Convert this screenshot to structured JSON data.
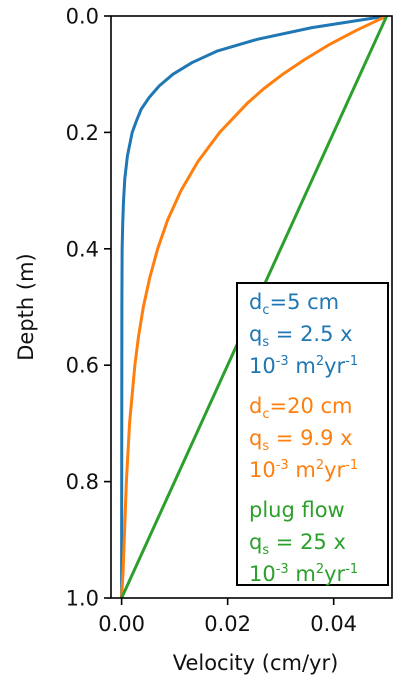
{
  "chart_data": {
    "type": "line",
    "xlabel": "Velocity (cm/yr)",
    "ylabel": "Depth (m)",
    "xlim": [
      -0.002,
      0.051
    ],
    "ylim": [
      1.0,
      0.0
    ],
    "y_inverted": true,
    "x_ticks": [
      "0.00",
      "0.02",
      "0.04"
    ],
    "x_tick_values": [
      0.0,
      0.02,
      0.04
    ],
    "y_ticks": [
      "0.0",
      "0.2",
      "0.4",
      "0.6",
      "0.8",
      "1.0"
    ],
    "y_tick_values": [
      0.0,
      0.2,
      0.4,
      0.6,
      0.8,
      1.0
    ],
    "grid": false,
    "legend_position": "bottom-right",
    "series": [
      {
        "key": "dc5",
        "color": "#1f77b4",
        "x": [
          0.05,
          0.0359,
          0.0256,
          0.0181,
          0.0133,
          0.0097,
          0.0071,
          0.0052,
          0.0037,
          0.0028,
          0.002,
          0.0011,
          0.0006,
          0.00035,
          0.0002,
          0.0001,
          5e-05,
          0.0
        ],
        "y": [
          0.0,
          0.02,
          0.04,
          0.06,
          0.08,
          0.1,
          0.12,
          0.14,
          0.16,
          0.18,
          0.2,
          0.24,
          0.28,
          0.32,
          0.36,
          0.4,
          0.5,
          1.0
        ],
        "legend": {
          "line1": {
            "main": "d",
            "sub": "c",
            "rest": "=5 cm"
          },
          "line2": {
            "main": "q",
            "sub": "s",
            "rest": " = 2.5 x"
          },
          "line3": {
            "base": "10",
            "exp1": "-3",
            "mid": " m",
            "exp2": "2",
            "unit": "yr",
            "exp3": "-1"
          }
        }
      },
      {
        "key": "dc20",
        "color": "#ff7f0e",
        "x": [
          0.05,
          0.0442,
          0.039,
          0.0345,
          0.0304,
          0.0268,
          0.0237,
          0.0185,
          0.0144,
          0.0112,
          0.0087,
          0.0068,
          0.0053,
          0.0041,
          0.0032,
          0.0025,
          0.0015,
          0.0009,
          0.0005,
          0.0003,
          0.0
        ],
        "y": [
          0.0,
          0.025,
          0.05,
          0.075,
          0.1,
          0.125,
          0.15,
          0.2,
          0.25,
          0.3,
          0.35,
          0.4,
          0.45,
          0.5,
          0.55,
          0.6,
          0.7,
          0.8,
          0.9,
          0.95,
          1.0
        ],
        "legend": {
          "line1": {
            "main": "d",
            "sub": "c",
            "rest": "=20 cm"
          },
          "line2": {
            "main": "q",
            "sub": "s",
            "rest": " = 9.9 x"
          },
          "line3": {
            "base": "10",
            "exp1": "-3",
            "mid": " m",
            "exp2": "2",
            "unit": "yr",
            "exp3": "-1"
          }
        }
      },
      {
        "key": "plug",
        "color": "#2ca02c",
        "x": [
          0.05,
          0.0
        ],
        "y": [
          0.0,
          1.0
        ],
        "legend": {
          "line1": {
            "text": "plug flow"
          },
          "line2": {
            "main": "q",
            "sub": "s",
            "rest": " = 25 x"
          },
          "line3": {
            "base": "10",
            "exp1": "-3",
            "mid": " m",
            "exp2": "2",
            "unit": "yr",
            "exp3": "-1"
          }
        }
      }
    ]
  }
}
